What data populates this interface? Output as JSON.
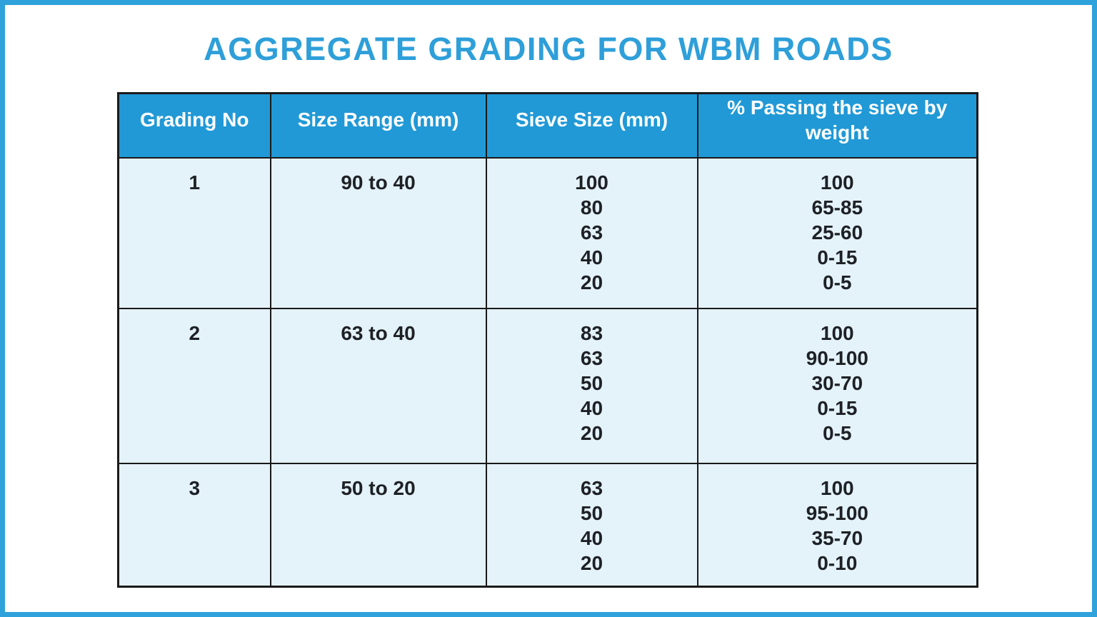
{
  "page": {
    "title": "AGGREGATE GRADING FOR WBM ROADS"
  },
  "colors": {
    "accent_blue": "#2E9FD9",
    "frame_blue": "#2FA2DB",
    "header_blue": "#2199D6",
    "cell_bg": "#E4F2F9",
    "border_dark": "#1A1A1A",
    "header_text": "#FFFFFF",
    "body_text": "#1D2126",
    "page_bg": "#FFFFFF"
  },
  "table": {
    "headers": [
      "Grading No",
      "Size Range (mm)",
      "Sieve Size (mm)",
      "% Passing the sieve by weight"
    ],
    "rows": [
      {
        "grading_no": "1",
        "size_range": "90 to 40",
        "sieve_sizes": [
          "100",
          "80",
          "63",
          "40",
          "20"
        ],
        "passing": [
          "100",
          "65-85",
          "25-60",
          "0-15",
          "0-5"
        ]
      },
      {
        "grading_no": "2",
        "size_range": "63 to 40",
        "sieve_sizes": [
          "83",
          "63",
          "50",
          "40",
          "20"
        ],
        "passing": [
          "100",
          "90-100",
          "30-70",
          "0-15",
          "0-5"
        ]
      },
      {
        "grading_no": "3",
        "size_range": "50 to 20",
        "sieve_sizes": [
          "63",
          "50",
          "40",
          "20"
        ],
        "passing": [
          "100",
          "95-100",
          "35-70",
          "0-10"
        ]
      }
    ]
  },
  "chart_data": {
    "type": "table",
    "title": "AGGREGATE GRADING FOR WBM ROADS",
    "columns": [
      "Grading No",
      "Size Range (mm)",
      "Sieve Size (mm)",
      "% Passing the sieve by weight"
    ],
    "rows": [
      {
        "grading_no": 1,
        "size_range_mm": "90 to 40",
        "sieve_size_mm": [
          100,
          80,
          63,
          40,
          20
        ],
        "percent_passing_by_weight": [
          "100",
          "65-85",
          "25-60",
          "0-15",
          "0-5"
        ]
      },
      {
        "grading_no": 2,
        "size_range_mm": "63 to 40",
        "sieve_size_mm": [
          83,
          63,
          50,
          40,
          20
        ],
        "percent_passing_by_weight": [
          "100",
          "90-100",
          "30-70",
          "0-15",
          "0-5"
        ]
      },
      {
        "grading_no": 3,
        "size_range_mm": "50 to 20",
        "sieve_size_mm": [
          63,
          50,
          40,
          20
        ],
        "percent_passing_by_weight": [
          "100",
          "95-100",
          "35-70",
          "0-10"
        ]
      }
    ]
  }
}
